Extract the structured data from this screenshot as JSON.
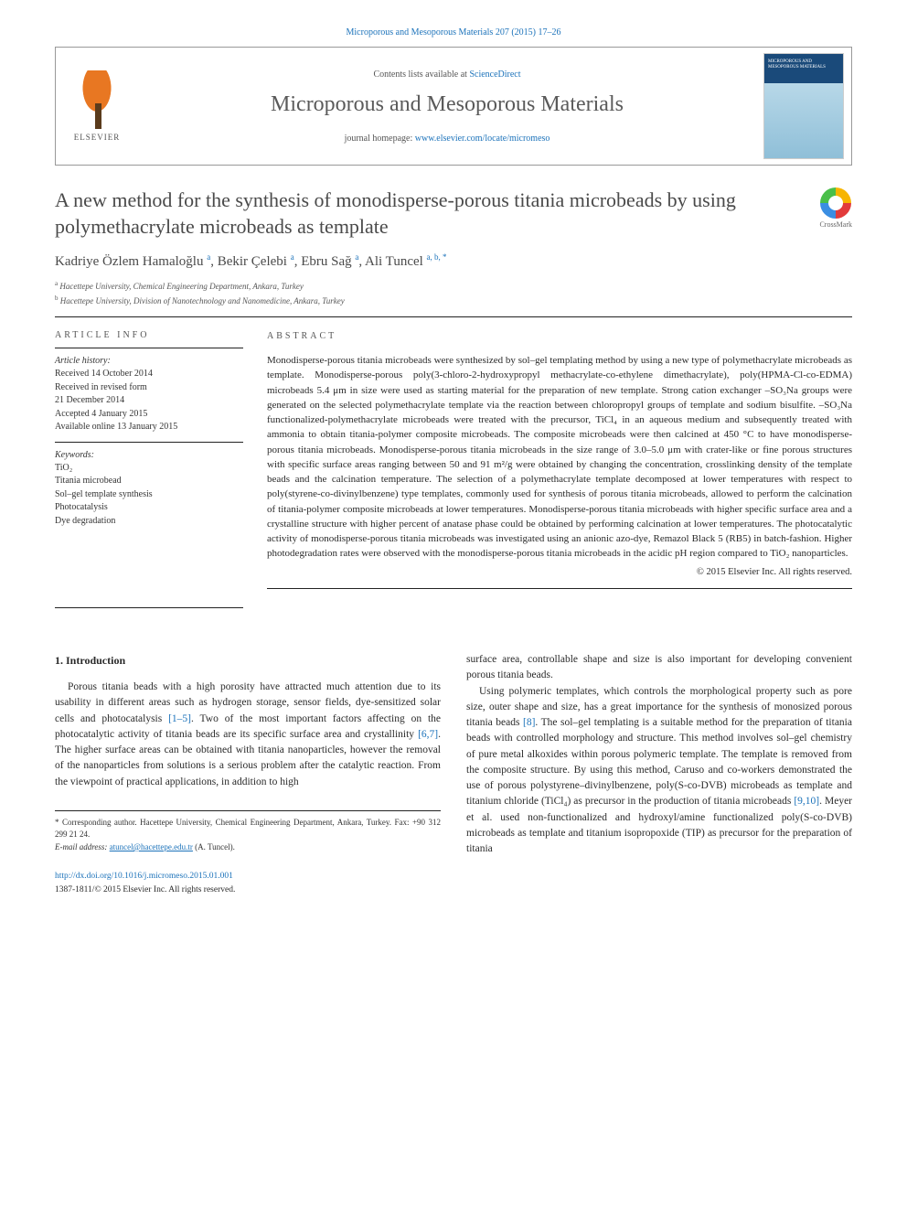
{
  "citation": "Microporous and Mesoporous Materials 207 (2015) 17–26",
  "masthead": {
    "publisher": "ELSEVIER",
    "contents_prefix": "Contents lists available at ",
    "contents_link": "ScienceDirect",
    "journal": "Microporous and Mesoporous Materials",
    "homepage_prefix": "journal homepage: ",
    "homepage_url": "www.elsevier.com/locate/micromeso",
    "cover_text": "MICROPOROUS AND MESOPOROUS MATERIALS"
  },
  "crossmark": "CrossMark",
  "title": "A new method for the synthesis of monodisperse-porous titania microbeads by using polymethacrylate microbeads as template",
  "authors_html": "Kadriye Özlem Hamaloğlu <span class='sup'>a</span>, Bekir Çelebi <span class='sup'>a</span>, Ebru Sağ <span class='sup'>a</span>, Ali Tuncel <span class='sup'>a, b, *</span>",
  "affiliations": [
    {
      "sup": "a",
      "text": "Hacettepe University, Chemical Engineering Department, Ankara, Turkey"
    },
    {
      "sup": "b",
      "text": "Hacettepe University, Division of Nanotechnology and Nanomedicine, Ankara, Turkey"
    }
  ],
  "article_info": {
    "label": "ARTICLE INFO",
    "history_label": "Article history:",
    "history": [
      "Received 14 October 2014",
      "Received in revised form",
      "21 December 2014",
      "Accepted 4 January 2015",
      "Available online 13 January 2015"
    ],
    "keywords_label": "Keywords:",
    "keywords": [
      "TiO₂",
      "Titania microbead",
      "Sol–gel template synthesis",
      "Photocatalysis",
      "Dye degradation"
    ]
  },
  "abstract": {
    "label": "ABSTRACT",
    "text": "Monodisperse-porous titania microbeads were synthesized by sol–gel templating method by using a new type of polymethacrylate microbeads as template. Monodisperse-porous poly(3-chloro-2-hydroxypropyl methacrylate-co-ethylene dimethacrylate), poly(HPMA-Cl-co-EDMA) microbeads 5.4 μm in size were used as starting material for the preparation of new template. Strong cation exchanger –SO₃Na groups were generated on the selected polymethacrylate template via the reaction between chloropropyl groups of template and sodium bisulfite. –SO₃Na functionalized-polymethacrylate microbeads were treated with the precursor, TiCl₄ in an aqueous medium and subsequently treated with ammonia to obtain titania-polymer composite microbeads. The composite microbeads were then calcined at 450 °C to have monodisperse-porous titania microbeads. Monodisperse-porous titania microbeads in the size range of 3.0–5.0 μm with crater-like or fine porous structures with specific surface areas ranging between 50 and 91 m²/g were obtained by changing the concentration, crosslinking density of the template beads and the calcination temperature. The selection of a polymethacrylate template decomposed at lower temperatures with respect to poly(styrene-co-divinylbenzene) type templates, commonly used for synthesis of porous titania microbeads, allowed to perform the calcination of titania-polymer composite microbeads at lower temperatures. Monodisperse-porous titania microbeads with higher specific surface area and a crystalline structure with higher percent of anatase phase could be obtained by performing calcination at lower temperatures. The photocatalytic activity of monodisperse-porous titania microbeads was investigated using an anionic azo-dye, Remazol Black 5 (RB5) in batch-fashion. Higher photodegradation rates were observed with the monodisperse-porous titania microbeads in the acidic pH region compared to TiO₂ nanoparticles.",
    "copyright": "© 2015 Elsevier Inc. All rights reserved."
  },
  "body": {
    "heading": "1. Introduction",
    "left_paras": [
      "Porous titania beads with a high porosity have attracted much attention due to its usability in different areas such as hydrogen storage, sensor fields, dye-sensitized solar cells and photocatalysis <span class='refnum'>[1–5]</span>. Two of the most important factors affecting on the photocatalytic activity of titania beads are its specific surface area and crystallinity <span class='refnum'>[6,7]</span>. The higher surface areas can be obtained with titania nanoparticles, however the removal of the nanoparticles from solutions is a serious problem after the catalytic reaction. From the viewpoint of practical applications, in addition to high"
    ],
    "right_paras": [
      "surface area, controllable shape and size is also important for developing convenient porous titania beads.",
      "Using polymeric templates, which controls the morphological property such as pore size, outer shape and size, has a great importance for the synthesis of monosized porous titania beads <span class='refnum'>[8]</span>. The sol–gel templating is a suitable method for the preparation of titania beads with controlled morphology and structure. This method involves sol–gel chemistry of pure metal alkoxides within porous polymeric template. The template is removed from the composite structure. By using this method, Caruso and co-workers demonstrated the use of porous polystyrene–divinylbenzene, poly(S-co-DVB) microbeads as template and titanium chloride (TiCl₄) as precursor in the production of titania microbeads <span class='refnum'>[9,10]</span>. Meyer et al. used non-functionalized and hydroxyl/amine functionalized poly(S-co-DVB) microbeads as template and titanium isopropoxide (TIP) as precursor for the preparation of titania"
    ]
  },
  "corresponding": {
    "star": "*",
    "text": "Corresponding author. Hacettepe University, Chemical Engineering Department, Ankara, Turkey. Fax: +90 312 299 21 24.",
    "email_label": "E-mail address:",
    "email": "atuncel@hacettepe.edu.tr",
    "email_attrib": "(A. Tuncel)."
  },
  "doi": {
    "url": "http://dx.doi.org/10.1016/j.micromeso.2015.01.001",
    "line2": "1387-1811/© 2015 Elsevier Inc. All rights reserved."
  },
  "colors": {
    "link": "#1b72ba",
    "text": "#2a2a2a",
    "muted": "#555555"
  }
}
